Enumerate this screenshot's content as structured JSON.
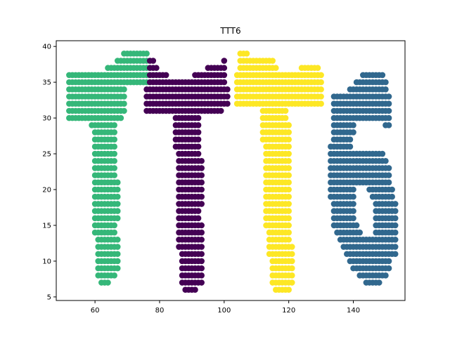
{
  "chart_data": {
    "type": "scatter",
    "title": "TTT6",
    "xlabel": "",
    "ylabel": "",
    "xlim": [
      48,
      156
    ],
    "ylim": [
      4.5,
      40.8
    ],
    "xticks": [
      60,
      80,
      100,
      120,
      140
    ],
    "yticks": [
      5,
      10,
      15,
      20,
      25,
      30,
      35,
      40
    ],
    "grid": false,
    "legend": "none",
    "colormap": "viridis",
    "series": [
      {
        "color": "#35b779",
        "rows": [
          {
            "y": 39,
            "x": [
              69,
              76
            ]
          },
          {
            "y": 38,
            "x": [
              67,
              76
            ]
          },
          {
            "y": 37,
            "x": [
              64,
              76
            ]
          },
          {
            "y": 36,
            "x": [
              52,
              76
            ]
          },
          {
            "y": 35,
            "x": [
              52,
              76
            ]
          },
          {
            "y": 34,
            "x": [
              52,
              69
            ]
          },
          {
            "y": 33,
            "x": [
              52,
              69
            ]
          },
          {
            "y": 32,
            "x": [
              52,
              69
            ]
          },
          {
            "y": 31,
            "x": [
              52,
              69
            ]
          },
          {
            "y": 30,
            "x": [
              52,
              68
            ]
          },
          {
            "y": 29,
            "x": [
              59,
              66
            ]
          },
          {
            "y": 28,
            "x": [
              60,
              66
            ]
          },
          {
            "y": 27,
            "x": [
              60,
              66
            ]
          },
          {
            "y": 26,
            "x": [
              60,
              66
            ]
          },
          {
            "y": 25,
            "x": [
              60,
              66
            ]
          },
          {
            "y": 24,
            "x": [
              60,
              66
            ]
          },
          {
            "y": 23,
            "x": [
              60,
              66
            ]
          },
          {
            "y": 22,
            "x": [
              60,
              66
            ]
          },
          {
            "y": 21,
            "x": [
              60,
              67
            ]
          },
          {
            "y": 20,
            "x": [
              60,
              67
            ]
          },
          {
            "y": 19,
            "x": [
              60,
              67
            ]
          },
          {
            "y": 18,
            "x": [
              60,
              67
            ]
          },
          {
            "y": 17,
            "x": [
              60,
              67
            ]
          },
          {
            "y": 16,
            "x": [
              60,
              67
            ]
          },
          {
            "y": 15,
            "x": [
              60,
              66
            ]
          },
          {
            "y": 14,
            "x": [
              60,
              66
            ]
          },
          {
            "y": 13,
            "x": [
              61,
              67
            ]
          },
          {
            "y": 12,
            "x": [
              61,
              67
            ]
          },
          {
            "y": 11,
            "x": [
              61,
              67
            ]
          },
          {
            "y": 10,
            "x": [
              61,
              67
            ]
          },
          {
            "y": 9,
            "x": [
              61,
              67
            ]
          },
          {
            "y": 8,
            "x": [
              61,
              66
            ]
          },
          {
            "y": 7,
            "x": [
              62,
              64
            ]
          }
        ]
      },
      {
        "color": "#440154",
        "rows": [
          {
            "y": 38,
            "x": [
              77,
              78
            ]
          },
          {
            "y": 38,
            "x": [
              100,
              100
            ]
          },
          {
            "y": 37,
            "x": [
              77,
              79
            ]
          },
          {
            "y": 37,
            "x": [
              95,
              100
            ]
          },
          {
            "y": 36,
            "x": [
              77,
              82
            ]
          },
          {
            "y": 36,
            "x": [
              91,
              100
            ]
          },
          {
            "y": 35,
            "x": [
              77,
              100
            ]
          },
          {
            "y": 34,
            "x": [
              76,
              101
            ]
          },
          {
            "y": 33,
            "x": [
              76,
              101
            ]
          },
          {
            "y": 32,
            "x": [
              76,
              101
            ]
          },
          {
            "y": 31,
            "x": [
              76,
              99
            ]
          },
          {
            "y": 30,
            "x": [
              85,
              92
            ]
          },
          {
            "y": 29,
            "x": [
              85,
              92
            ]
          },
          {
            "y": 28,
            "x": [
              85,
              92
            ]
          },
          {
            "y": 27,
            "x": [
              85,
              92
            ]
          },
          {
            "y": 26,
            "x": [
              85,
              92
            ]
          },
          {
            "y": 25,
            "x": [
              86,
              92
            ]
          },
          {
            "y": 24,
            "x": [
              86,
              93
            ]
          },
          {
            "y": 23,
            "x": [
              86,
              93
            ]
          },
          {
            "y": 22,
            "x": [
              86,
              93
            ]
          },
          {
            "y": 21,
            "x": [
              86,
              93
            ]
          },
          {
            "y": 20,
            "x": [
              86,
              93
            ]
          },
          {
            "y": 19,
            "x": [
              86,
              93
            ]
          },
          {
            "y": 18,
            "x": [
              86,
              93
            ]
          },
          {
            "y": 17,
            "x": [
              86,
              92
            ]
          },
          {
            "y": 16,
            "x": [
              86,
              92
            ]
          },
          {
            "y": 15,
            "x": [
              86,
              93
            ]
          },
          {
            "y": 14,
            "x": [
              86,
              93
            ]
          },
          {
            "y": 13,
            "x": [
              86,
              93
            ]
          },
          {
            "y": 12,
            "x": [
              86,
              93
            ]
          },
          {
            "y": 11,
            "x": [
              87,
              93
            ]
          },
          {
            "y": 10,
            "x": [
              87,
              93
            ]
          },
          {
            "y": 9,
            "x": [
              87,
              93
            ]
          },
          {
            "y": 8,
            "x": [
              87,
              93
            ]
          },
          {
            "y": 7,
            "x": [
              87,
              93
            ]
          },
          {
            "y": 6,
            "x": [
              88,
              91
            ]
          }
        ]
      },
      {
        "color": "#fde725",
        "rows": [
          {
            "y": 39,
            "x": [
              105,
              107
            ]
          },
          {
            "y": 38,
            "x": [
              105,
              115
            ]
          },
          {
            "y": 37,
            "x": [
              105,
              116
            ]
          },
          {
            "y": 37,
            "x": [
              124,
              129
            ]
          },
          {
            "y": 36,
            "x": [
              104,
              130
            ]
          },
          {
            "y": 35,
            "x": [
              104,
              130
            ]
          },
          {
            "y": 34,
            "x": [
              104,
              130
            ]
          },
          {
            "y": 33,
            "x": [
              104,
              130
            ]
          },
          {
            "y": 32,
            "x": [
              104,
              130
            ]
          },
          {
            "y": 31,
            "x": [
              112,
              119
            ]
          },
          {
            "y": 30,
            "x": [
              112,
              119
            ]
          },
          {
            "y": 29,
            "x": [
              112,
              120
            ]
          },
          {
            "y": 28,
            "x": [
              112,
              120
            ]
          },
          {
            "y": 27,
            "x": [
              112,
              120
            ]
          },
          {
            "y": 26,
            "x": [
              113,
              120
            ]
          },
          {
            "y": 25,
            "x": [
              113,
              120
            ]
          },
          {
            "y": 24,
            "x": [
              113,
              120
            ]
          },
          {
            "y": 23,
            "x": [
              113,
              120
            ]
          },
          {
            "y": 22,
            "x": [
              113,
              120
            ]
          },
          {
            "y": 21,
            "x": [
              113,
              120
            ]
          },
          {
            "y": 20,
            "x": [
              113,
              120
            ]
          },
          {
            "y": 19,
            "x": [
              113,
              120
            ]
          },
          {
            "y": 18,
            "x": [
              113,
              120
            ]
          },
          {
            "y": 17,
            "x": [
              113,
              120
            ]
          },
          {
            "y": 16,
            "x": [
              113,
              120
            ]
          },
          {
            "y": 15,
            "x": [
              113,
              120
            ]
          },
          {
            "y": 14,
            "x": [
              114,
              120
            ]
          },
          {
            "y": 13,
            "x": [
              114,
              120
            ]
          },
          {
            "y": 12,
            "x": [
              114,
              121
            ]
          },
          {
            "y": 11,
            "x": [
              114,
              121
            ]
          },
          {
            "y": 10,
            "x": [
              115,
              121
            ]
          },
          {
            "y": 9,
            "x": [
              115,
              121
            ]
          },
          {
            "y": 8,
            "x": [
              115,
              121
            ]
          },
          {
            "y": 7,
            "x": [
              115,
              121
            ]
          },
          {
            "y": 6,
            "x": [
              116,
              120
            ]
          }
        ]
      },
      {
        "color": "#31688e",
        "rows": [
          {
            "y": 36,
            "x": [
              143,
              149
            ]
          },
          {
            "y": 35,
            "x": [
              141,
              150
            ]
          },
          {
            "y": 34,
            "x": [
              139,
              150
            ]
          },
          {
            "y": 33,
            "x": [
              134,
              151
            ]
          },
          {
            "y": 32,
            "x": [
              134,
              151
            ]
          },
          {
            "y": 31,
            "x": [
              134,
              151
            ]
          },
          {
            "y": 30,
            "x": [
              134,
              151
            ]
          },
          {
            "y": 29,
            "x": [
              134,
              140
            ]
          },
          {
            "y": 29,
            "x": [
              150,
              151
            ]
          },
          {
            "y": 28,
            "x": [
              134,
              140
            ]
          },
          {
            "y": 27,
            "x": [
              134,
              139
            ]
          },
          {
            "y": 26,
            "x": [
              133,
              139
            ]
          },
          {
            "y": 25,
            "x": [
              133,
              149
            ]
          },
          {
            "y": 24,
            "x": [
              133,
              150
            ]
          },
          {
            "y": 23,
            "x": [
              133,
              151
            ]
          },
          {
            "y": 22,
            "x": [
              133,
              151
            ]
          },
          {
            "y": 21,
            "x": [
              133,
              151
            ]
          },
          {
            "y": 20,
            "x": [
              133,
              140
            ]
          },
          {
            "y": 20,
            "x": [
              145,
              152
            ]
          },
          {
            "y": 19,
            "x": [
              133,
              140
            ]
          },
          {
            "y": 19,
            "x": [
              146,
              152
            ]
          },
          {
            "y": 18,
            "x": [
              134,
              140
            ]
          },
          {
            "y": 18,
            "x": [
              147,
              153
            ]
          },
          {
            "y": 17,
            "x": [
              134,
              140
            ]
          },
          {
            "y": 17,
            "x": [
              147,
              153
            ]
          },
          {
            "y": 16,
            "x": [
              134,
              140
            ]
          },
          {
            "y": 16,
            "x": [
              147,
              153
            ]
          },
          {
            "y": 15,
            "x": [
              134,
              141
            ]
          },
          {
            "y": 15,
            "x": [
              147,
              153
            ]
          },
          {
            "y": 14,
            "x": [
              135,
              142
            ]
          },
          {
            "y": 14,
            "x": [
              147,
              153
            ]
          },
          {
            "y": 13,
            "x": [
              136,
              153
            ]
          },
          {
            "y": 12,
            "x": [
              137,
              153
            ]
          },
          {
            "y": 11,
            "x": [
              138,
              153
            ]
          },
          {
            "y": 10,
            "x": [
              139,
              151
            ]
          },
          {
            "y": 9,
            "x": [
              140,
              151
            ]
          },
          {
            "y": 8,
            "x": [
              142,
              150
            ]
          },
          {
            "y": 7,
            "x": [
              144,
              148
            ]
          }
        ]
      }
    ]
  }
}
